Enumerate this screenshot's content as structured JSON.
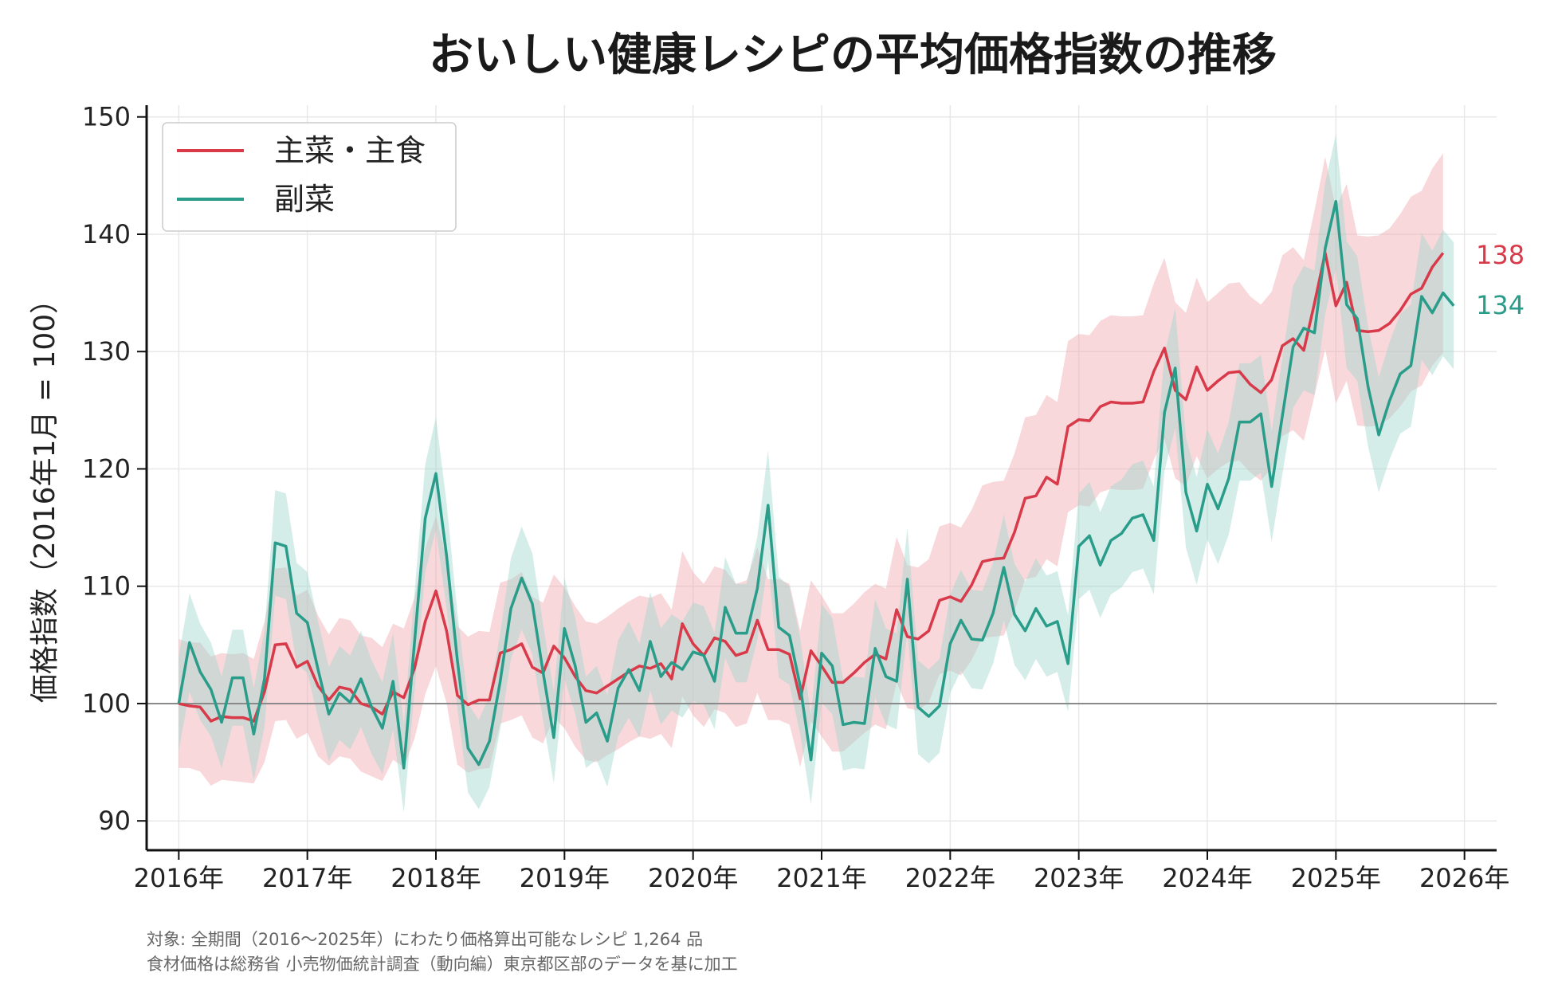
{
  "chart_data": {
    "type": "line",
    "title": "おいしい健康レシピの平均価格指数の推移",
    "xlabel": "",
    "ylabel": "価格指数（2016年1月 = 100）",
    "ylim": [
      87.5,
      151
    ],
    "yticks": [
      90,
      100,
      110,
      120,
      130,
      140,
      150
    ],
    "xlim": [
      2015.75,
      2026.25
    ],
    "xticks": [
      {
        "value": 2016,
        "label": "2016年"
      },
      {
        "value": 2017,
        "label": "2017年"
      },
      {
        "value": 2018,
        "label": "2018年"
      },
      {
        "value": 2019,
        "label": "2019年"
      },
      {
        "value": 2020,
        "label": "2020年"
      },
      {
        "value": 2021,
        "label": "2021年"
      },
      {
        "value": 2022,
        "label": "2022年"
      },
      {
        "value": 2023,
        "label": "2023年"
      },
      {
        "value": 2024,
        "label": "2024年"
      },
      {
        "value": 2025,
        "label": "2025年"
      },
      {
        "value": 2026,
        "label": "2026年"
      }
    ],
    "reference_line": 100,
    "grid": true,
    "legend_position": "top-left",
    "x_start": "2016-01",
    "x_step": "1 month",
    "series": [
      {
        "name": "主菜・主食",
        "color": "#d83a4a",
        "band_color": "#f0a8b0",
        "end_label": "138",
        "values": [
          100,
          99.8,
          99.7,
          98.5,
          98.9,
          98.8,
          98.8,
          98.5,
          101,
          105,
          105.1,
          103.1,
          103.6,
          101.5,
          100.3,
          101.4,
          101.2,
          100,
          99.7,
          99.1,
          101,
          100.5,
          103,
          107,
          109.6,
          106.2,
          100.7,
          99.9,
          100.3,
          100.3,
          104.3,
          104.6,
          105.1,
          103.1,
          102.6,
          104.9,
          103.9,
          102.3,
          101.1,
          100.9,
          101.5,
          102.1,
          102.7,
          103.2,
          103,
          103.4,
          102.1,
          106.8,
          105.1,
          104.1,
          105.6,
          105.3,
          104.1,
          104.4,
          107.1,
          104.6,
          104.6,
          104.2,
          100.4,
          104.5,
          103.2,
          101.8,
          101.8,
          102.6,
          103.5,
          104.2,
          103.8,
          108,
          105.7,
          105.5,
          106.2,
          108.8,
          109.1,
          108.7,
          110.1,
          112.1,
          112.3,
          112.4,
          114.6,
          117.5,
          117.7,
          119.3,
          118.7,
          123.6,
          124.2,
          124.1,
          125.3,
          125.7,
          125.6,
          125.6,
          125.7,
          128.3,
          130.3,
          126.7,
          125.9,
          128.7,
          126.7,
          127.5,
          128.2,
          128.3,
          127.2,
          126.5,
          127.6,
          130.5,
          131.1,
          130.1,
          134.1,
          138.4,
          133.9,
          135.9,
          131.8,
          131.7,
          131.8,
          132.4,
          133.5,
          134.9,
          135.4,
          137.2,
          138.4
        ],
        "lower": [
          94.5,
          94.5,
          94.2,
          93.0,
          93.5,
          93.4,
          93.3,
          93.2,
          95.0,
          98.5,
          98.6,
          97.0,
          97.5,
          95.5,
          94.7,
          95.5,
          95.3,
          94.2,
          93.8,
          93.4,
          95.2,
          94.6,
          97.0,
          100.8,
          103.2,
          100.0,
          94.8,
          94.1,
          94.4,
          94.5,
          98.3,
          98.6,
          99.0,
          97.1,
          96.6,
          98.8,
          97.9,
          96.3,
          95.2,
          95.0,
          95.6,
          96.1,
          96.7,
          97.2,
          97.0,
          97.4,
          96.2,
          100.6,
          99.0,
          98.0,
          99.5,
          99.2,
          98.0,
          98.3,
          100.9,
          98.6,
          98.6,
          98.2,
          94.6,
          98.5,
          97.2,
          95.9,
          95.9,
          96.7,
          97.5,
          98.2,
          97.8,
          101.8,
          99.6,
          99.4,
          100.1,
          102.5,
          102.8,
          102.4,
          103.7,
          105.6,
          105.7,
          105.8,
          107.9,
          110.6,
          110.8,
          112.3,
          111.7,
          116.3,
          116.9,
          116.8,
          118.0,
          118.3,
          118.2,
          118.2,
          118.3,
          120.8,
          122.6,
          119.2,
          118.5,
          121.1,
          119.2,
          120.0,
          120.6,
          120.7,
          119.7,
          119.0,
          120.1,
          122.8,
          123.3,
          122.4,
          126.2,
          130.2,
          125.6,
          127.5,
          123.7,
          123.6,
          123.7,
          124.3,
          125.3,
          126.6,
          127.1,
          128.8,
          129.9
        ],
        "upper": [
          105.5,
          105.2,
          105.2,
          104.0,
          104.3,
          104.2,
          104.3,
          103.8,
          107.0,
          111.5,
          111.6,
          109.2,
          109.7,
          107.5,
          105.9,
          107.3,
          107.1,
          105.8,
          105.6,
          104.8,
          106.8,
          106.4,
          109.0,
          113.2,
          116.0,
          112.4,
          106.6,
          105.7,
          106.2,
          106.1,
          110.3,
          110.6,
          111.2,
          109.1,
          108.6,
          111.0,
          109.9,
          108.3,
          107.0,
          106.8,
          107.4,
          108.1,
          108.7,
          109.2,
          109.0,
          109.4,
          108.0,
          113.0,
          111.2,
          110.2,
          111.7,
          111.4,
          110.2,
          110.5,
          113.3,
          110.6,
          110.6,
          110.2,
          106.2,
          110.5,
          109.2,
          107.7,
          107.7,
          108.5,
          109.5,
          110.2,
          109.8,
          114.2,
          111.8,
          111.6,
          112.3,
          115.1,
          115.4,
          115.0,
          116.5,
          118.6,
          118.9,
          119.0,
          121.3,
          124.4,
          124.6,
          126.3,
          125.7,
          130.9,
          131.5,
          131.4,
          132.6,
          133.1,
          133.0,
          133.0,
          133.1,
          135.8,
          138.0,
          134.2,
          133.3,
          136.3,
          134.2,
          135.0,
          135.8,
          135.9,
          134.7,
          134.0,
          135.1,
          138.2,
          138.9,
          137.8,
          142.0,
          146.6,
          142.2,
          144.3,
          139.9,
          139.8,
          139.9,
          140.5,
          141.7,
          143.2,
          143.7,
          145.6,
          146.9
        ]
      },
      {
        "name": "副菜",
        "color": "#2a9c8a",
        "band_color": "#9fd6cc",
        "end_label": "134",
        "values": [
          100,
          105.2,
          102.7,
          101.2,
          98.4,
          102.2,
          102.2,
          97.4,
          102.1,
          113.7,
          113.4,
          107.7,
          106.9,
          102.9,
          99.1,
          100.9,
          100.1,
          102.1,
          99.7,
          97.9,
          101.9,
          94.5,
          105.2,
          115.8,
          119.6,
          112.6,
          103.7,
          96.2,
          94.8,
          96.8,
          101.9,
          108.1,
          110.7,
          108.5,
          102.7,
          97.1,
          106.4,
          103.2,
          98.4,
          99.2,
          96.8,
          101.3,
          102.9,
          101.1,
          105.3,
          102.3,
          103.5,
          102.9,
          104.4,
          104.1,
          101.9,
          108.2,
          106,
          106,
          109.8,
          116.9,
          106.5,
          105.8,
          101.5,
          95.2,
          104.3,
          103.2,
          98.2,
          98.4,
          98.3,
          104.7,
          102.3,
          101.9,
          110.6,
          99.7,
          98.9,
          99.8,
          105.1,
          107.1,
          105.5,
          105.4,
          107.7,
          111.6,
          107.6,
          106.2,
          108.1,
          106.6,
          107,
          103.4,
          113.4,
          114.3,
          111.8,
          113.9,
          114.5,
          115.8,
          116.1,
          113.9,
          124.8,
          128.6,
          118,
          114.7,
          118.7,
          116.6,
          119.2,
          124,
          124,
          124.7,
          118.5,
          124.5,
          130.4,
          132,
          131.6,
          138.8,
          142.8,
          134,
          132.8,
          127,
          122.9,
          125.8,
          128.1,
          128.8,
          134.7,
          133.3,
          135,
          133.9
        ],
        "lower": [
          96.0,
          101.0,
          98.6,
          97.2,
          94.5,
          98.1,
          98.1,
          93.5,
          98.0,
          109.2,
          108.9,
          103.4,
          102.6,
          98.8,
          95.1,
          96.9,
          96.1,
          98.0,
          95.7,
          94.0,
          97.8,
          90.7,
          101.0,
          111.2,
          114.8,
          108.1,
          99.6,
          92.4,
          91.0,
          92.9,
          97.8,
          103.8,
          106.3,
          104.2,
          98.6,
          93.2,
          102.1,
          99.1,
          94.5,
          95.2,
          92.9,
          97.2,
          98.8,
          97.1,
          101.1,
          98.2,
          99.4,
          98.8,
          100.2,
          99.9,
          97.8,
          103.9,
          101.8,
          101.8,
          105.4,
          112.2,
          102.2,
          101.6,
          97.4,
          91.4,
          100.1,
          99.1,
          94.3,
          94.5,
          94.4,
          100.5,
          98.2,
          97.8,
          106.2,
          95.7,
          94.9,
          95.8,
          100.9,
          102.8,
          101.3,
          101.2,
          103.4,
          107.1,
          103.3,
          102.0,
          103.8,
          102.3,
          102.7,
          99.3,
          108.9,
          109.7,
          107.3,
          109.3,
          109.9,
          111.2,
          111.5,
          109.3,
          119.8,
          123.5,
          113.3,
          110.1,
          114.0,
          111.9,
          114.4,
          119.0,
          119.0,
          119.7,
          113.8,
          119.5,
          125.2,
          126.7,
          126.3,
          133.2,
          137.1,
          128.6,
          127.5,
          121.9,
          118.0,
          120.8,
          123.0,
          123.6,
          129.3,
          128.0,
          129.6,
          128.5
        ],
        "upper": [
          104.0,
          109.4,
          106.8,
          105.2,
          102.3,
          106.3,
          106.3,
          101.3,
          106.2,
          118.2,
          117.9,
          112.0,
          111.2,
          107.0,
          103.1,
          104.9,
          104.1,
          106.2,
          103.7,
          101.8,
          106.0,
          98.3,
          109.4,
          120.4,
          124.4,
          117.1,
          107.8,
          100.0,
          98.6,
          100.7,
          106.0,
          112.4,
          115.1,
          112.8,
          106.8,
          101.0,
          110.7,
          107.3,
          102.3,
          103.2,
          100.7,
          105.4,
          107.0,
          105.1,
          109.5,
          106.4,
          107.6,
          107.0,
          108.6,
          108.3,
          106.0,
          112.5,
          110.2,
          110.2,
          114.2,
          121.6,
          110.8,
          110.0,
          105.6,
          99.0,
          108.5,
          107.3,
          102.1,
          102.3,
          102.2,
          108.9,
          106.4,
          106.0,
          115.0,
          103.7,
          102.9,
          103.8,
          109.3,
          111.4,
          109.7,
          109.6,
          112.0,
          116.1,
          111.9,
          110.4,
          112.4,
          110.9,
          111.3,
          107.5,
          117.9,
          118.9,
          116.3,
          118.5,
          119.1,
          120.4,
          120.7,
          118.5,
          129.8,
          133.7,
          122.7,
          119.3,
          123.4,
          121.3,
          124.0,
          129.0,
          129.0,
          129.7,
          123.2,
          129.5,
          135.6,
          137.3,
          136.9,
          144.4,
          148.5,
          139.4,
          138.1,
          132.1,
          127.8,
          130.8,
          133.2,
          134.0,
          140.1,
          138.6,
          140.4,
          139.3
        ]
      }
    ]
  },
  "footnote": {
    "line1": "対象: 全期間（2016〜2025年）にわたり価格算出可能なレシピ 1,264 品",
    "line2": "食材価格は総務省 小売物価統計調査（動向編）東京都区部のデータを基に加工"
  }
}
